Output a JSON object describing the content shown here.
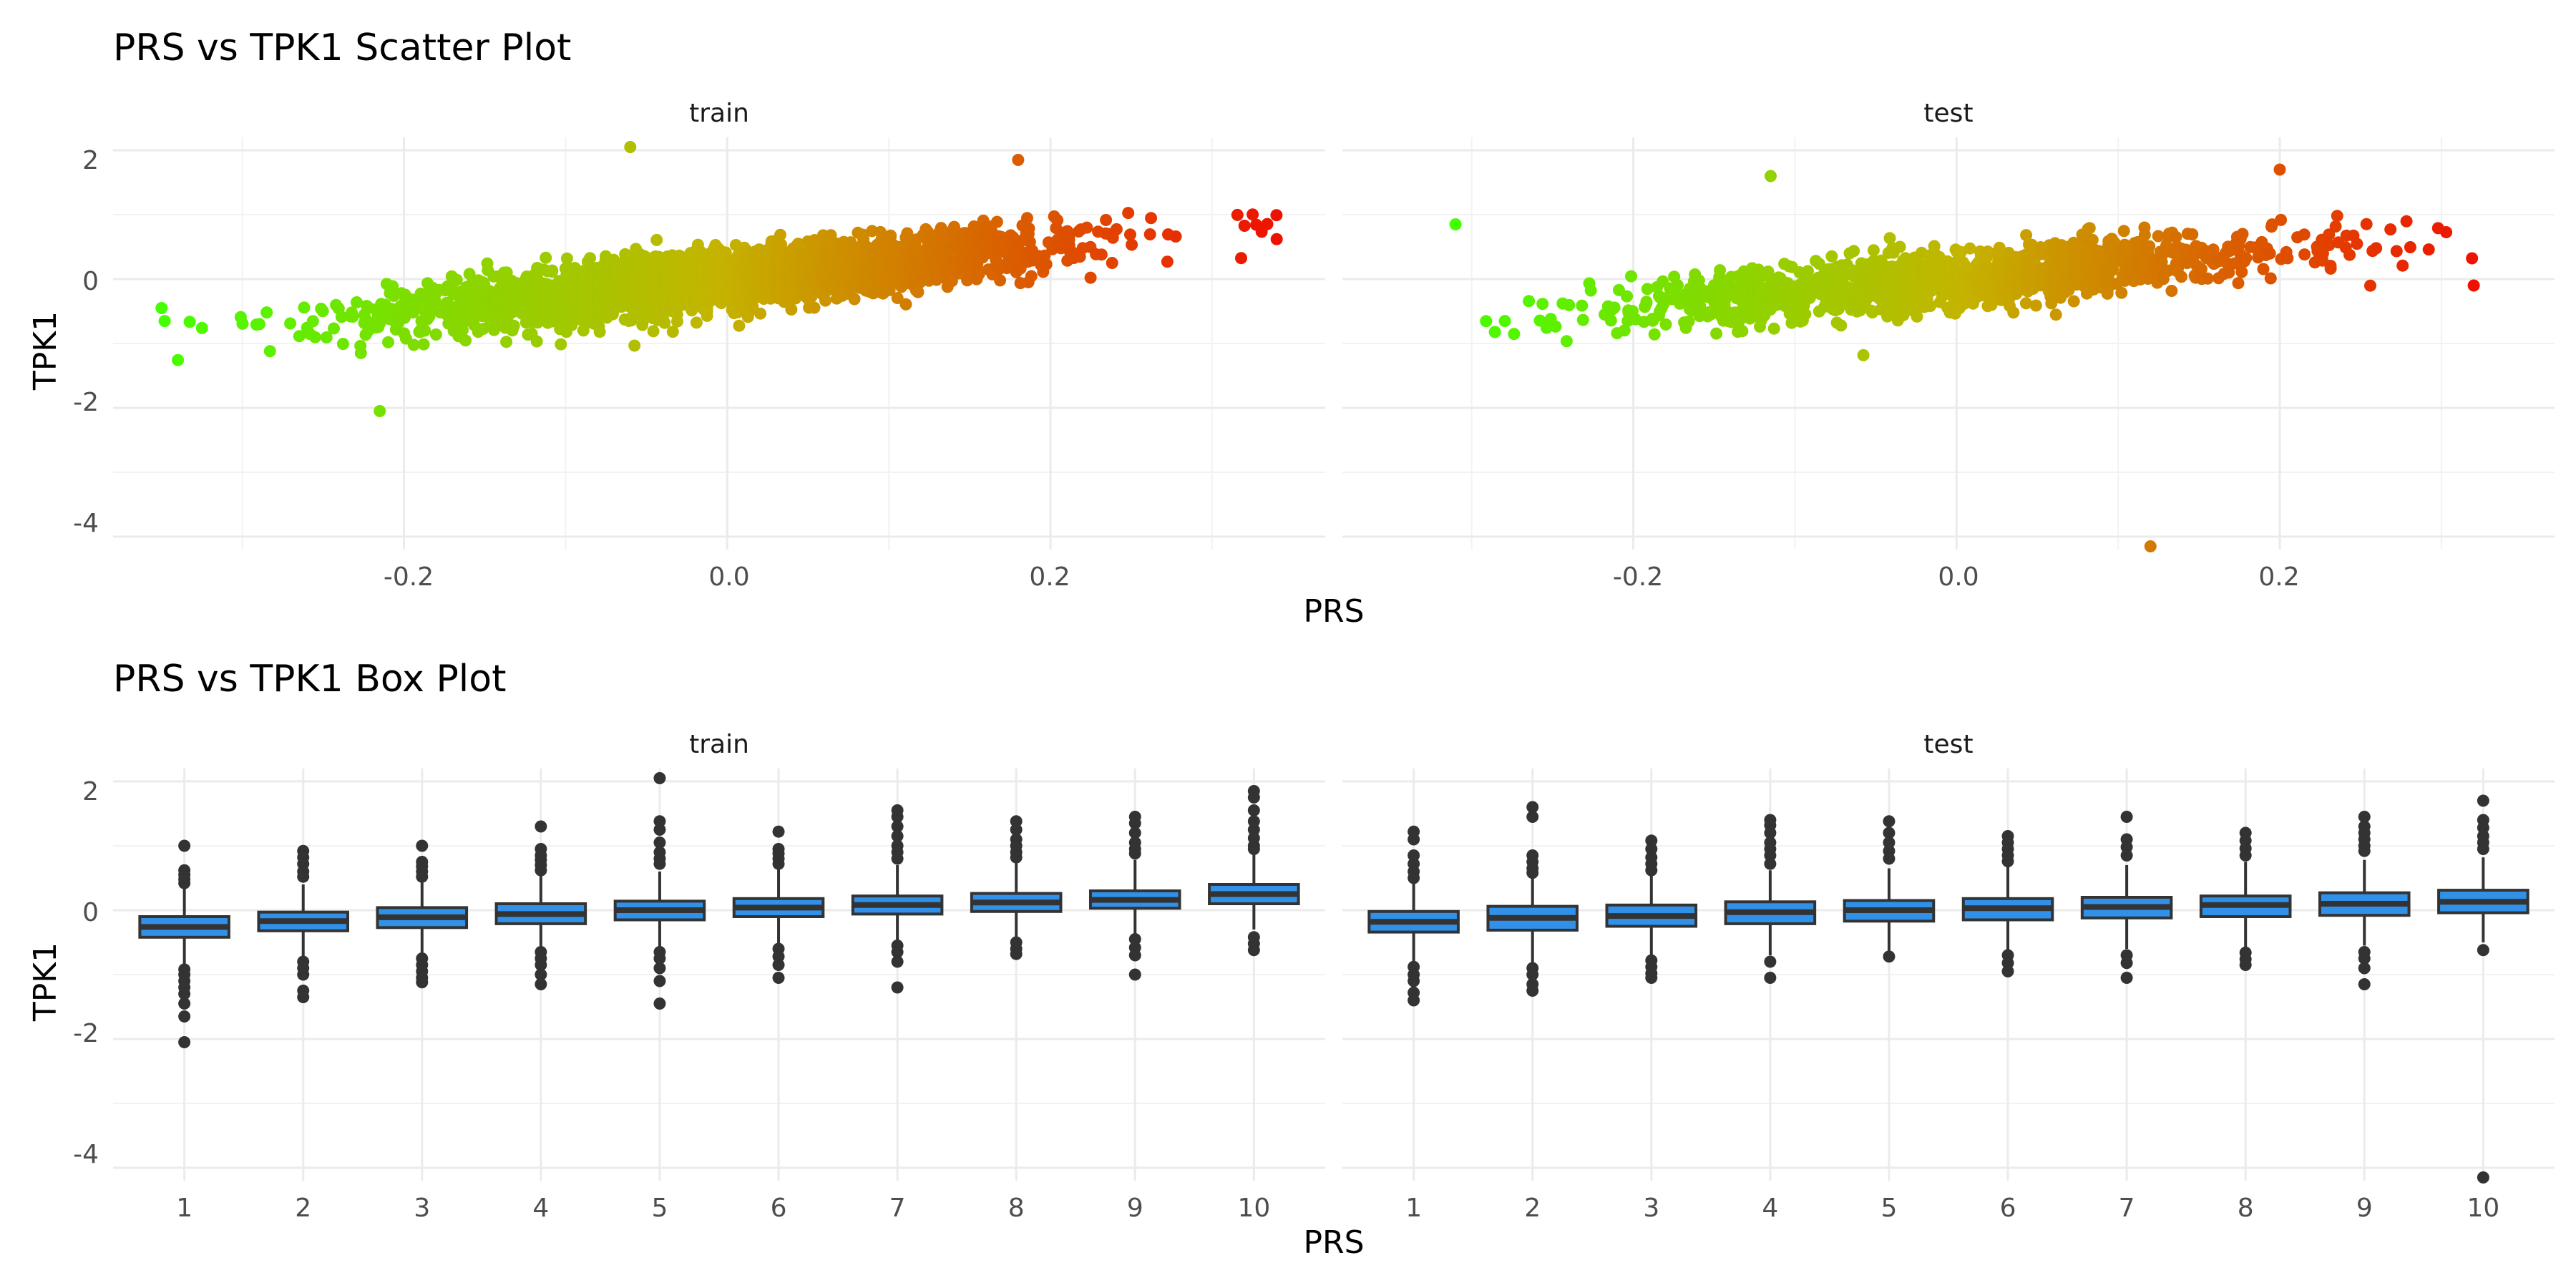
{
  "colors": {
    "low": "#44ff00",
    "mid": "#c4b400",
    "high": "#ee1100",
    "box_fill": "#3191e8",
    "box_stroke": "#333333",
    "outlier": "#333333"
  },
  "chart_data": [
    {
      "type": "scatter",
      "title": "PRS vs TPK1 Scatter Plot",
      "xlabel": "PRS",
      "ylabel": "TPK1",
      "ylim": [
        -4.2,
        2.2
      ],
      "y_ticks": [
        -4,
        -2,
        0,
        2
      ],
      "y_tick_labels": [
        "-4",
        "-2",
        "0",
        "2"
      ],
      "x_ticks": [
        -0.2,
        0.0,
        0.2
      ],
      "x_tick_labels": [
        "-0.2",
        "0.0",
        "0.2"
      ],
      "color_scale": "gradient green (low PRS) to red (high PRS)",
      "grid": true,
      "panels": [
        {
          "label": "train",
          "xlim": [
            -0.38,
            0.37
          ],
          "trend": {
            "slope": 2.6,
            "intercept": 0.0
          },
          "points_x_range": [
            -0.35,
            0.34
          ],
          "notable_points": [
            {
              "x": -0.06,
              "y": 2.05
            },
            {
              "x": -0.215,
              "y": -2.05
            },
            {
              "x": 0.34,
              "y": 0.62
            },
            {
              "x": -0.35,
              "y": -0.45
            },
            {
              "x": 0.18,
              "y": 1.85
            }
          ]
        },
        {
          "label": "test",
          "xlim": [
            -0.38,
            0.37
          ],
          "trend": {
            "slope": 2.2,
            "intercept": 0.0
          },
          "points_x_range": [
            -0.31,
            0.32
          ],
          "notable_points": [
            {
              "x": 0.12,
              "y": -4.15
            },
            {
              "x": 0.2,
              "y": 1.7
            },
            {
              "x": -0.115,
              "y": 1.6
            },
            {
              "x": 0.32,
              "y": -0.1
            },
            {
              "x": -0.31,
              "y": 0.85
            }
          ]
        }
      ]
    },
    {
      "type": "box",
      "title": "PRS vs TPK1 Box Plot",
      "xlabel": "PRS",
      "ylabel": "TPK1",
      "ylim": [
        -4.2,
        2.2
      ],
      "y_ticks": [
        -4,
        -2,
        0,
        2
      ],
      "y_tick_labels": [
        "-4",
        "-2",
        "0",
        "2"
      ],
      "categories": [
        "1",
        "2",
        "3",
        "4",
        "5",
        "6",
        "7",
        "8",
        "9",
        "10"
      ],
      "grid": true,
      "panels": [
        {
          "label": "train",
          "boxes": [
            {
              "q1": -0.42,
              "median": -0.26,
              "q3": -0.1,
              "whisker_low": -0.85,
              "whisker_high": 0.35,
              "outliers": [
                1.0,
                0.62,
                0.55,
                0.48,
                0.42,
                -0.92,
                -1.0,
                -1.1,
                -1.2,
                -1.3,
                -1.45,
                -1.65,
                -2.05
              ]
            },
            {
              "q1": -0.32,
              "median": -0.17,
              "q3": -0.03,
              "whisker_low": -0.75,
              "whisker_high": 0.4,
              "outliers": [
                0.92,
                0.82,
                0.72,
                0.6,
                0.52,
                -0.8,
                -0.9,
                -1.0,
                -1.25,
                -1.35
              ]
            },
            {
              "q1": -0.27,
              "median": -0.11,
              "q3": 0.04,
              "whisker_low": -0.72,
              "whisker_high": 0.48,
              "outliers": [
                1.0,
                0.75,
                0.68,
                0.6,
                0.52,
                -0.75,
                -0.85,
                -0.95,
                -1.05,
                -1.12
              ]
            },
            {
              "q1": -0.21,
              "median": -0.06,
              "q3": 0.1,
              "whisker_low": -0.6,
              "whisker_high": 0.55,
              "outliers": [
                1.3,
                0.95,
                0.85,
                0.78,
                0.7,
                0.62,
                -0.65,
                -0.75,
                -0.85,
                -1.0,
                -1.15
              ]
            },
            {
              "q1": -0.15,
              "median": 0.0,
              "q3": 0.14,
              "whisker_low": -0.58,
              "whisker_high": 0.6,
              "outliers": [
                2.05,
                1.38,
                1.25,
                1.05,
                0.9,
                0.8,
                0.72,
                -0.65,
                -0.75,
                -0.9,
                -1.1,
                -1.45
              ]
            },
            {
              "q1": -0.1,
              "median": 0.04,
              "q3": 0.18,
              "whisker_low": -0.52,
              "whisker_high": 0.65,
              "outliers": [
                1.22,
                0.95,
                0.88,
                0.8,
                0.72,
                -0.6,
                -0.72,
                -0.85,
                -1.05
              ]
            },
            {
              "q1": -0.06,
              "median": 0.08,
              "q3": 0.22,
              "whisker_low": -0.48,
              "whisker_high": 0.7,
              "outliers": [
                1.55,
                1.45,
                1.3,
                1.15,
                1.0,
                0.9,
                0.8,
                -0.55,
                -0.65,
                -0.8,
                -1.2
              ]
            },
            {
              "q1": -0.02,
              "median": 0.12,
              "q3": 0.26,
              "whisker_low": -0.44,
              "whisker_high": 0.75,
              "outliers": [
                1.38,
                1.25,
                1.1,
                1.0,
                0.9,
                0.82,
                -0.5,
                -0.6,
                -0.68
              ]
            },
            {
              "q1": 0.03,
              "median": 0.16,
              "q3": 0.3,
              "whisker_low": -0.4,
              "whisker_high": 0.78,
              "outliers": [
                1.45,
                1.35,
                1.2,
                1.05,
                0.95,
                0.88,
                -0.45,
                -0.58,
                -0.7,
                -1.0
              ]
            },
            {
              "q1": 0.1,
              "median": 0.25,
              "q3": 0.4,
              "whisker_low": -0.3,
              "whisker_high": 0.88,
              "outliers": [
                1.85,
                1.75,
                1.55,
                1.38,
                1.25,
                1.12,
                1.0,
                0.95,
                -0.42,
                -0.52,
                -0.62
              ]
            }
          ]
        },
        {
          "label": "test",
          "boxes": [
            {
              "q1": -0.34,
              "median": -0.18,
              "q3": -0.02,
              "whisker_low": -0.8,
              "whisker_high": 0.42,
              "outliers": [
                1.22,
                1.1,
                0.85,
                0.72,
                0.6,
                0.5,
                -0.88,
                -1.0,
                -1.1,
                -1.28,
                -1.4
              ]
            },
            {
              "q1": -0.31,
              "median": -0.12,
              "q3": 0.06,
              "whisker_low": -0.82,
              "whisker_high": 0.52,
              "outliers": [
                1.6,
                1.45,
                0.85,
                0.75,
                0.65,
                0.58,
                -0.9,
                -1.0,
                -1.15,
                -1.25
              ]
            },
            {
              "q1": -0.25,
              "median": -0.09,
              "q3": 0.08,
              "whisker_low": -0.74,
              "whisker_high": 0.55,
              "outliers": [
                1.08,
                0.95,
                0.82,
                0.72,
                0.62,
                -0.78,
                -0.88,
                -0.98,
                -1.05
              ]
            },
            {
              "q1": -0.21,
              "median": -0.03,
              "q3": 0.13,
              "whisker_low": -0.7,
              "whisker_high": 0.62,
              "outliers": [
                1.4,
                1.32,
                1.2,
                1.05,
                0.95,
                0.85,
                0.72,
                -0.8,
                -1.05
              ]
            },
            {
              "q1": -0.17,
              "median": 0.0,
              "q3": 0.15,
              "whisker_low": -0.65,
              "whisker_high": 0.65,
              "outliers": [
                1.38,
                1.2,
                1.05,
                0.92,
                0.8,
                -0.72
              ]
            },
            {
              "q1": -0.15,
              "median": 0.03,
              "q3": 0.18,
              "whisker_low": -0.62,
              "whisker_high": 0.68,
              "outliers": [
                1.15,
                1.05,
                0.95,
                0.85,
                0.76,
                -0.7,
                -0.82,
                -0.95
              ]
            },
            {
              "q1": -0.12,
              "median": 0.05,
              "q3": 0.2,
              "whisker_low": -0.6,
              "whisker_high": 0.7,
              "outliers": [
                1.45,
                1.1,
                0.98,
                0.85,
                -0.7,
                -0.82,
                -1.05
              ]
            },
            {
              "q1": -0.1,
              "median": 0.08,
              "q3": 0.22,
              "whisker_low": -0.58,
              "whisker_high": 0.75,
              "outliers": [
                1.2,
                1.08,
                0.96,
                0.85,
                -0.66,
                -0.76,
                -0.85
              ]
            },
            {
              "q1": -0.08,
              "median": 0.1,
              "q3": 0.27,
              "whisker_low": -0.55,
              "whisker_high": 0.78,
              "outliers": [
                1.45,
                1.3,
                1.2,
                1.1,
                1.0,
                0.92,
                -0.65,
                -0.75,
                -0.9,
                -1.15
              ]
            },
            {
              "q1": -0.04,
              "median": 0.13,
              "q3": 0.31,
              "whisker_low": -0.5,
              "whisker_high": 0.82,
              "outliers": [
                1.7,
                1.4,
                1.28,
                1.15,
                1.05,
                0.95,
                -0.62,
                -4.15
              ]
            }
          ]
        }
      ]
    }
  ]
}
